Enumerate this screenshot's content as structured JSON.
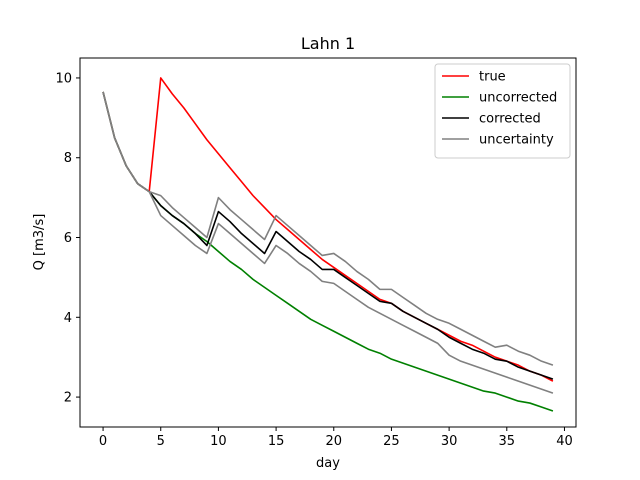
{
  "chart_data": {
    "type": "line",
    "title": "Lahn 1",
    "xlabel": "day",
    "ylabel": "Q [m3/s]",
    "xlim": [
      -2,
      41
    ],
    "ylim": [
      1.25,
      10.5
    ],
    "xticks": [
      0,
      5,
      10,
      15,
      20,
      25,
      30,
      35,
      40
    ],
    "yticks": [
      2,
      4,
      6,
      8,
      10
    ],
    "grid": false,
    "legend_position": "top-right",
    "series": [
      {
        "name": "true",
        "color": "#ff0000",
        "x": [
          0,
          1,
          2,
          3,
          4,
          5,
          6,
          7,
          8,
          9,
          10,
          11,
          12,
          13,
          14,
          15,
          16,
          17,
          18,
          19,
          20,
          21,
          22,
          23,
          24,
          25,
          26,
          27,
          28,
          29,
          30,
          31,
          32,
          33,
          34,
          35,
          36,
          37,
          38,
          39
        ],
        "y": [
          9.65,
          8.5,
          7.8,
          7.35,
          7.15,
          10.0,
          9.6,
          9.25,
          8.85,
          8.45,
          8.1,
          7.75,
          7.4,
          7.05,
          6.75,
          6.45,
          6.2,
          5.95,
          5.7,
          5.45,
          5.25,
          5.05,
          4.85,
          4.65,
          4.45,
          4.35,
          4.15,
          4.0,
          3.85,
          3.7,
          3.55,
          3.4,
          3.3,
          3.15,
          3.0,
          2.9,
          2.8,
          2.65,
          2.55,
          2.4
        ]
      },
      {
        "name": "uncorrected",
        "color": "#008000",
        "x": [
          0,
          1,
          2,
          3,
          4,
          5,
          6,
          7,
          8,
          9,
          10,
          11,
          12,
          13,
          14,
          15,
          16,
          17,
          18,
          19,
          20,
          21,
          22,
          23,
          24,
          25,
          26,
          27,
          28,
          29,
          30,
          31,
          32,
          33,
          34,
          35,
          36,
          37,
          38,
          39
        ],
        "y": [
          9.65,
          8.5,
          7.8,
          7.35,
          7.15,
          6.8,
          6.55,
          6.35,
          6.1,
          5.9,
          5.65,
          5.4,
          5.2,
          4.95,
          4.75,
          4.55,
          4.35,
          4.15,
          3.95,
          3.8,
          3.65,
          3.5,
          3.35,
          3.2,
          3.1,
          2.95,
          2.85,
          2.75,
          2.65,
          2.55,
          2.45,
          2.35,
          2.25,
          2.15,
          2.1,
          2.0,
          1.9,
          1.85,
          1.75,
          1.65
        ]
      },
      {
        "name": "corrected",
        "color": "#000000",
        "x": [
          0,
          1,
          2,
          3,
          4,
          5,
          6,
          7,
          8,
          9,
          10,
          11,
          12,
          13,
          14,
          15,
          16,
          17,
          18,
          19,
          20,
          21,
          22,
          23,
          24,
          25,
          26,
          27,
          28,
          29,
          30,
          31,
          32,
          33,
          34,
          35,
          36,
          37,
          38,
          39
        ],
        "y": [
          9.65,
          8.5,
          7.8,
          7.35,
          7.15,
          6.8,
          6.55,
          6.35,
          6.1,
          5.8,
          6.65,
          6.4,
          6.1,
          5.85,
          5.6,
          6.15,
          5.9,
          5.65,
          5.45,
          5.2,
          5.2,
          5.0,
          4.8,
          4.6,
          4.4,
          4.35,
          4.15,
          4.0,
          3.85,
          3.7,
          3.5,
          3.35,
          3.2,
          3.1,
          2.95,
          2.9,
          2.75,
          2.65,
          2.55,
          2.45
        ]
      },
      {
        "name": "uncertainty",
        "color": "#808080",
        "x": [
          0,
          1,
          2,
          3,
          4,
          5,
          6,
          7,
          8,
          9,
          10,
          11,
          12,
          13,
          14,
          15,
          16,
          17,
          18,
          19,
          20,
          21,
          22,
          23,
          24,
          25,
          26,
          27,
          28,
          29,
          30,
          31,
          32,
          33,
          34,
          35,
          36,
          37,
          38,
          39
        ],
        "y": [
          9.65,
          8.5,
          7.8,
          7.35,
          7.15,
          7.05,
          6.75,
          6.5,
          6.25,
          6.0,
          7.0,
          6.7,
          6.45,
          6.2,
          5.95,
          6.55,
          6.3,
          6.05,
          5.8,
          5.55,
          5.6,
          5.4,
          5.15,
          4.95,
          4.7,
          4.7,
          4.5,
          4.3,
          4.1,
          3.95,
          3.85,
          3.7,
          3.55,
          3.4,
          3.25,
          3.3,
          3.15,
          3.05,
          2.9,
          2.8
        ]
      },
      {
        "name": "",
        "color": "#808080",
        "x": [
          0,
          1,
          2,
          3,
          4,
          5,
          6,
          7,
          8,
          9,
          10,
          11,
          12,
          13,
          14,
          15,
          16,
          17,
          18,
          19,
          20,
          21,
          22,
          23,
          24,
          25,
          26,
          27,
          28,
          29,
          30,
          31,
          32,
          33,
          34,
          35,
          36,
          37,
          38,
          39
        ],
        "y": [
          9.65,
          8.5,
          7.8,
          7.35,
          7.15,
          6.55,
          6.3,
          6.05,
          5.8,
          5.6,
          6.35,
          6.1,
          5.85,
          5.6,
          5.35,
          5.8,
          5.6,
          5.35,
          5.15,
          4.9,
          4.85,
          4.65,
          4.45,
          4.25,
          4.1,
          3.95,
          3.8,
          3.65,
          3.5,
          3.35,
          3.05,
          2.9,
          2.8,
          2.7,
          2.6,
          2.5,
          2.4,
          2.3,
          2.2,
          2.1
        ]
      }
    ]
  }
}
